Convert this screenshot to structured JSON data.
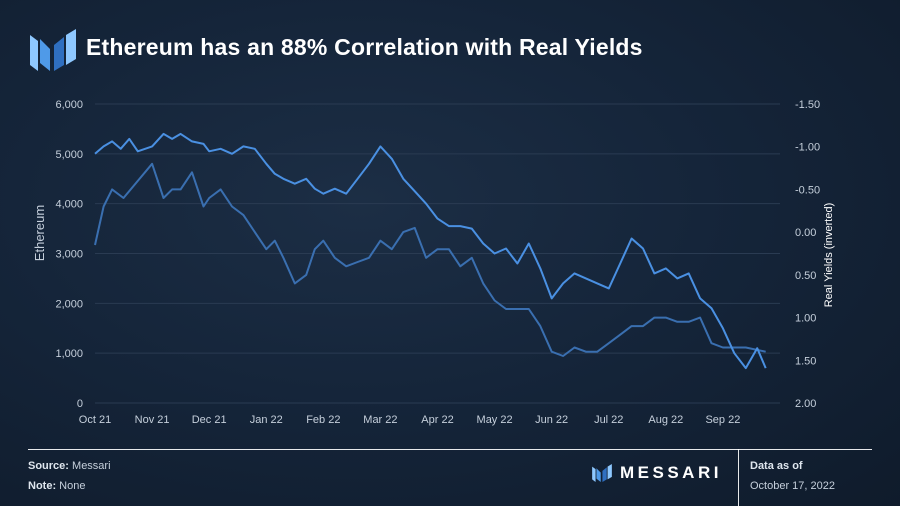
{
  "title": "Ethereum has an 88% Correlation with Real Yields",
  "footer": {
    "source_label": "Source:",
    "source_value": "Messari",
    "note_label": "Note:",
    "note_value": "None",
    "brand": "MESSARI",
    "data_as_of_label": "Data as of",
    "data_as_of_date": "October 17, 2022"
  },
  "colors": {
    "ethereum": "#4a90e2",
    "real_yields": "#3a6fb0",
    "grid": "#2a3b52"
  },
  "chart_data": {
    "type": "line",
    "title": "Ethereum has an 88% Correlation with Real Yields",
    "ylabel": "Ethereum",
    "y2label": "Real Yields (inverted)",
    "ylim": [
      0,
      6000
    ],
    "y2lim": [
      -1.5,
      2.0
    ],
    "y2_inverted": true,
    "yticks": [
      "0",
      "1,000",
      "2,000",
      "3,000",
      "4,000",
      "5,000",
      "6,000"
    ],
    "y2ticks": [
      "-1.50",
      "-1.00",
      "-0.50",
      "0.00",
      "0.50",
      "1.00",
      "1.50",
      "2.00"
    ],
    "xticks": [
      "Oct 21",
      "Nov 21",
      "Dec 21",
      "Jan 22",
      "Feb 22",
      "Mar 22",
      "Apr 22",
      "May 22",
      "Jun 22",
      "Jul 22",
      "Aug 22",
      "Sep 22"
    ],
    "grid": true,
    "series": [
      {
        "name": "Ethereum",
        "axis": "left",
        "x": [
          0,
          0.15,
          0.3,
          0.45,
          0.6,
          0.75,
          1.0,
          1.2,
          1.35,
          1.5,
          1.7,
          1.9,
          2.0,
          2.2,
          2.4,
          2.6,
          2.8,
          3.0,
          3.15,
          3.3,
          3.5,
          3.7,
          3.85,
          4.0,
          4.2,
          4.4,
          4.6,
          4.8,
          5.0,
          5.2,
          5.4,
          5.6,
          5.8,
          6.0,
          6.2,
          6.4,
          6.6,
          6.8,
          7.0,
          7.2,
          7.4,
          7.6,
          7.8,
          8.0,
          8.2,
          8.4,
          8.6,
          8.8,
          9.0,
          9.2,
          9.4,
          9.6,
          9.8,
          10.0,
          10.2,
          10.4,
          10.6,
          10.8,
          11.0,
          11.2,
          11.4,
          11.6,
          11.75
        ],
        "values": [
          5000,
          5150,
          5250,
          5100,
          5300,
          5050,
          5150,
          5400,
          5300,
          5400,
          5250,
          5200,
          5050,
          5100,
          5000,
          5150,
          5100,
          4800,
          4600,
          4500,
          4400,
          4500,
          4300,
          4200,
          4300,
          4200,
          4500,
          4800,
          5150,
          4900,
          4500,
          4250,
          4000,
          3700,
          3550,
          3550,
          3500,
          3200,
          3000,
          3100,
          2800,
          3200,
          2700,
          2100,
          2400,
          2600,
          2500,
          2400,
          2300,
          2800,
          3300,
          3100,
          2600,
          2700,
          2500,
          2600,
          2100,
          1900,
          1500,
          1000,
          700,
          1100,
          700
        ]
      },
      {
        "name": "Real Yields (inverted)",
        "axis": "right",
        "x": [
          0,
          0.15,
          0.3,
          0.5,
          0.75,
          1.0,
          1.2,
          1.35,
          1.5,
          1.7,
          1.9,
          2.0,
          2.2,
          2.4,
          2.6,
          2.8,
          3.0,
          3.15,
          3.3,
          3.5,
          3.7,
          3.85,
          4.0,
          4.2,
          4.4,
          4.6,
          4.8,
          5.0,
          5.2,
          5.4,
          5.6,
          5.8,
          6.0,
          6.2,
          6.4,
          6.6,
          6.8,
          7.0,
          7.2,
          7.4,
          7.6,
          7.8,
          8.0,
          8.2,
          8.4,
          8.6,
          8.8,
          9.0,
          9.2,
          9.4,
          9.6,
          9.8,
          10.0,
          10.2,
          10.4,
          10.6,
          10.8,
          11.0,
          11.2,
          11.4,
          11.75
        ],
        "values": [
          0.15,
          -0.3,
          -0.5,
          -0.4,
          -0.6,
          -0.8,
          -0.4,
          -0.5,
          -0.5,
          -0.7,
          -0.3,
          -0.4,
          -0.5,
          -0.3,
          -0.2,
          0.0,
          0.2,
          0.1,
          0.3,
          0.6,
          0.5,
          0.2,
          0.1,
          0.3,
          0.4,
          0.35,
          0.3,
          0.1,
          0.2,
          0.0,
          -0.05,
          0.3,
          0.2,
          0.2,
          0.4,
          0.3,
          0.6,
          0.8,
          0.9,
          0.9,
          0.9,
          1.1,
          1.4,
          1.45,
          1.35,
          1.4,
          1.4,
          1.3,
          1.2,
          1.1,
          1.1,
          1.0,
          1.0,
          1.05,
          1.05,
          1.0,
          1.3,
          1.35,
          1.35,
          1.35,
          1.4
        ]
      }
    ]
  }
}
